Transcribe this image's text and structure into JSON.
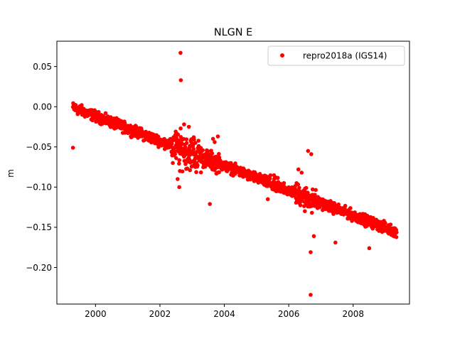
{
  "chart_data": {
    "type": "scatter",
    "title": "NLGN E",
    "xlabel": "",
    "ylabel": "m",
    "xlim": [
      1998.8,
      2009.75
    ],
    "ylim": [
      -0.2455,
      0.0815
    ],
    "x_ticks": [
      2000,
      2002,
      2004,
      2006,
      2008
    ],
    "x_tick_labels": [
      "2000",
      "2002",
      "2004",
      "2006",
      "2008"
    ],
    "y_ticks": [
      0.05,
      0.0,
      -0.05,
      -0.1,
      -0.15,
      -0.2
    ],
    "y_tick_labels": [
      "0.05",
      "0.00",
      "−0.05",
      "−0.10",
      "−0.15",
      "−0.20"
    ],
    "grid": false,
    "legend_position": "top-right",
    "colors": {
      "series": "#ff0000"
    },
    "series": [
      {
        "name": "repro2018a (IGS14)",
        "marker": "circle",
        "trend": {
          "start": [
            1999.3,
            -0.001
          ],
          "end": [
            2009.35,
            -0.156
          ]
        },
        "outliers": [
          [
            1999.3,
            -0.051
          ],
          [
            2002.64,
            0.067
          ],
          [
            2002.65,
            0.033
          ],
          [
            2002.6,
            -0.1
          ],
          [
            2002.55,
            -0.09
          ],
          [
            2002.5,
            -0.037
          ],
          [
            2002.75,
            -0.022
          ],
          [
            2002.9,
            -0.025
          ],
          [
            2003.05,
            -0.038
          ],
          [
            2002.4,
            -0.07
          ],
          [
            2002.62,
            -0.08
          ],
          [
            2003.1,
            -0.075
          ],
          [
            2003.65,
            -0.04
          ],
          [
            2003.8,
            -0.037
          ],
          [
            2003.7,
            -0.044
          ],
          [
            2003.55,
            -0.121
          ],
          [
            2005.35,
            -0.115
          ],
          [
            2005.55,
            -0.09
          ],
          [
            2005.85,
            -0.095
          ],
          [
            2006.3,
            -0.078
          ],
          [
            2006.4,
            -0.082
          ],
          [
            2006.6,
            -0.055
          ],
          [
            2006.7,
            -0.059
          ],
          [
            2006.5,
            -0.13
          ],
          [
            2006.72,
            -0.132
          ],
          [
            2006.68,
            -0.181
          ],
          [
            2006.78,
            -0.161
          ],
          [
            2006.68,
            -0.234
          ],
          [
            2007.45,
            -0.169
          ],
          [
            2008.0,
            -0.137
          ],
          [
            2008.5,
            -0.176
          ]
        ]
      }
    ]
  }
}
